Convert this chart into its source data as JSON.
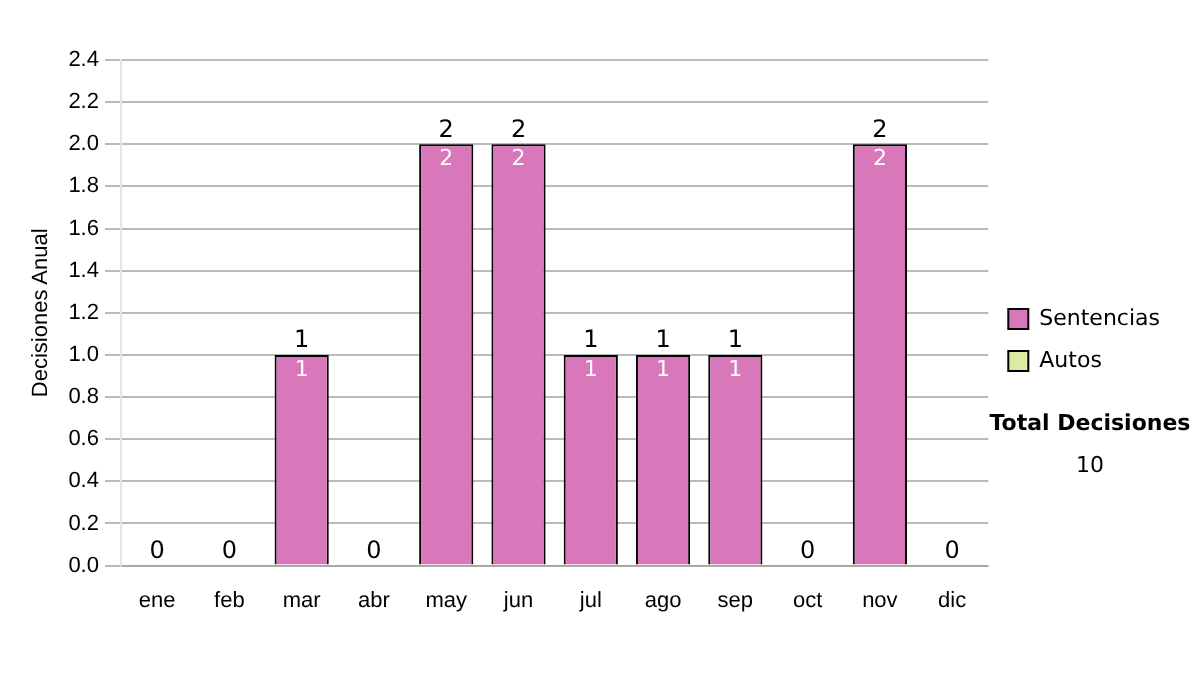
{
  "chart_data": {
    "type": "bar",
    "stacked": true,
    "ylabel": "Decisiones Anual",
    "categories": [
      "ene",
      "feb",
      "mar",
      "abr",
      "may",
      "jun",
      "jul",
      "ago",
      "sep",
      "oct",
      "nov",
      "dic"
    ],
    "series": [
      {
        "name": "Sentencias",
        "color": "#d877b9",
        "values": [
          0,
          0,
          1,
          0,
          2,
          2,
          1,
          1,
          1,
          0,
          2,
          0
        ],
        "value_labels": [
          null,
          null,
          "1",
          null,
          "2",
          "2",
          "1",
          "1",
          "1",
          null,
          "2",
          null
        ]
      },
      {
        "name": "Autos",
        "color": "#d9eca3",
        "values": [
          0,
          0,
          0,
          0,
          0,
          0,
          0,
          0,
          0,
          0,
          0,
          0
        ]
      }
    ],
    "totals": [
      "0",
      "0",
      "1",
      "0",
      "2",
      "2",
      "1",
      "1",
      "1",
      "0",
      "2",
      "0"
    ],
    "ylim": [
      0,
      2.4
    ],
    "yticks": [
      {
        "value": 0,
        "label": "0.0"
      },
      {
        "value": 0.2,
        "label": "0.2"
      },
      {
        "value": 0.4,
        "label": "0.4"
      },
      {
        "value": 0.6,
        "label": "0.6"
      },
      {
        "value": 0.8,
        "label": "0.8"
      },
      {
        "value": 1,
        "label": "1.0"
      },
      {
        "value": 1.2,
        "label": "1.2"
      },
      {
        "value": 1.4,
        "label": "1.4"
      },
      {
        "value": 1.6,
        "label": "1.6"
      },
      {
        "value": 1.8,
        "label": "1.8"
      },
      {
        "value": 2,
        "label": "2.0"
      },
      {
        "value": 2.2,
        "label": "2.2"
      },
      {
        "value": 2.4,
        "label": "2.4"
      }
    ],
    "grid": "y",
    "legend": "right",
    "annotations": [
      "Total Decisiones",
      "10"
    ]
  }
}
